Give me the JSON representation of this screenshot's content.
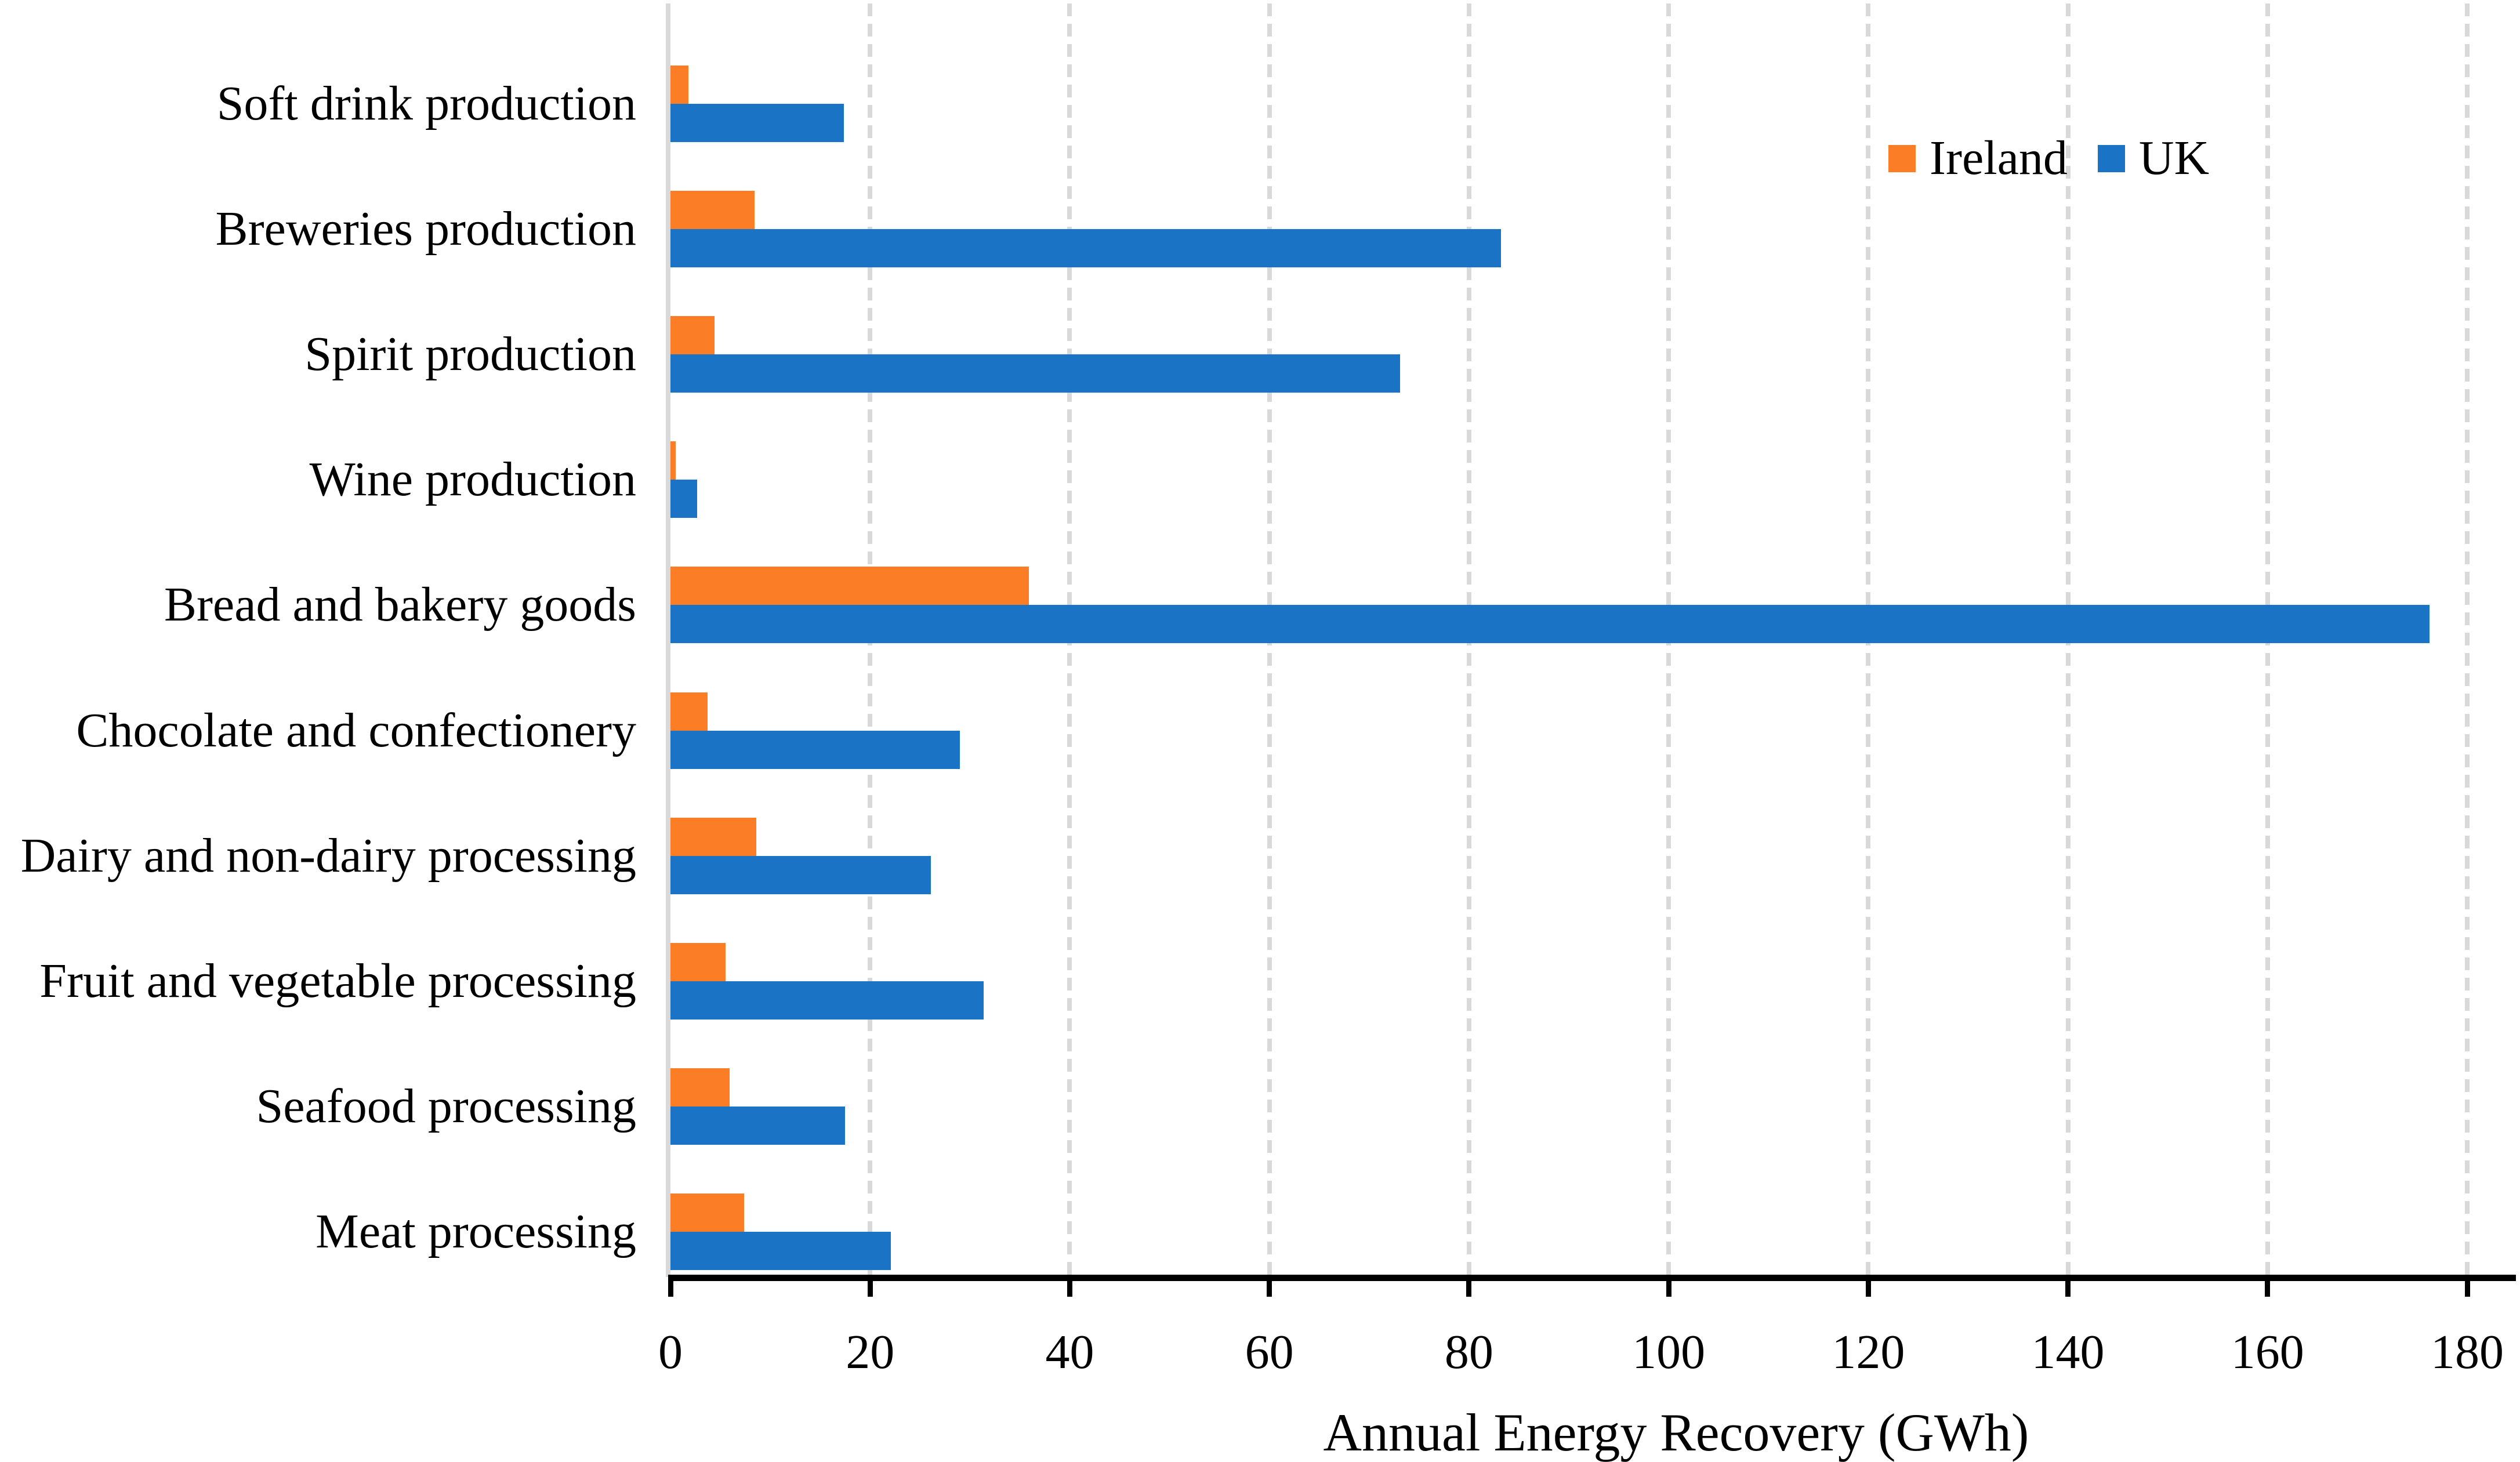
{
  "chart_data": {
    "type": "bar",
    "orientation": "horizontal",
    "title": "",
    "xlabel": "Annual Energy Recovery (GWh)",
    "ylabel": "",
    "xlim": [
      0,
      180
    ],
    "xticks": [
      0,
      20,
      40,
      60,
      80,
      100,
      120,
      140,
      160,
      180
    ],
    "grid": true,
    "legend_position": "top-right-inside",
    "categories": [
      "Soft drink production",
      "Breweries production",
      "Spirit production",
      "Wine production",
      "Bread and bakery goods",
      "Chocolate and confectionery",
      "Dairy and non-dairy processing",
      "Fruit and vegetable processing",
      "Seafood processing",
      "Meat processing"
    ],
    "series": [
      {
        "name": "Ireland",
        "color": "#fb7e26",
        "values": [
          1.8,
          8.4,
          4.4,
          0.5,
          35.9,
          3.7,
          8.6,
          5.5,
          5.9,
          7.4
        ]
      },
      {
        "name": "UK",
        "color": "#1b73c6",
        "values": [
          17.4,
          83.2,
          73.1,
          2.7,
          176.2,
          29.0,
          26.1,
          31.4,
          17.5,
          22.1
        ]
      }
    ],
    "colors": {
      "ireland": "#fb7e26",
      "uk": "#1b73c6",
      "gridline": "#d9d9d9",
      "axis": "#000000",
      "text": "#000000"
    }
  },
  "legend": {
    "ireland_label": "Ireland",
    "uk_label": "UK"
  },
  "axis": {
    "x_title": "Annual Energy Recovery (GWh)"
  }
}
